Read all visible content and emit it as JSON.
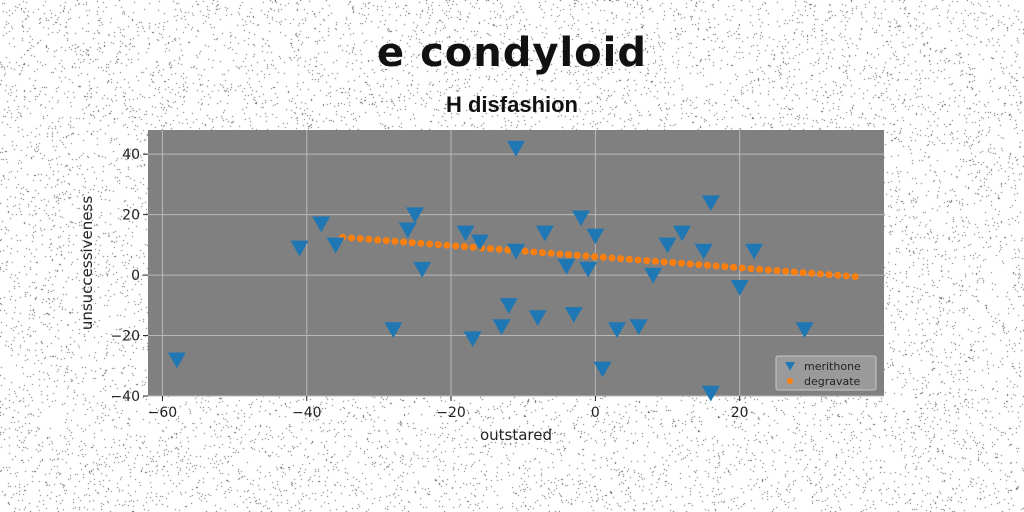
{
  "chart_data": {
    "type": "scatter",
    "title": "e condyloid",
    "subtitle": "H disfashion",
    "xlabel": "outstared",
    "ylabel": "unsuccessiveness",
    "xlim": [
      -62,
      40
    ],
    "ylim": [
      -40,
      48
    ],
    "xticks": [
      -60,
      -40,
      -20,
      0,
      20
    ],
    "yticks": [
      -40,
      -20,
      0,
      20,
      40
    ],
    "grid": true,
    "legend_position": "bottom-right",
    "background": "#808080",
    "series": [
      {
        "name": "merithone",
        "marker": "triangle-down",
        "color": "#1f77b4",
        "points": [
          [
            -58,
            -28
          ],
          [
            -41,
            9
          ],
          [
            -38,
            17
          ],
          [
            -36,
            10
          ],
          [
            -28,
            -18
          ],
          [
            -26,
            15
          ],
          [
            -25,
            20
          ],
          [
            -24,
            2
          ],
          [
            -18,
            14
          ],
          [
            -17,
            -21
          ],
          [
            -16,
            11
          ],
          [
            -13,
            -17
          ],
          [
            -12,
            -10
          ],
          [
            -11,
            8
          ],
          [
            -11,
            42
          ],
          [
            -8,
            -14
          ],
          [
            -7,
            14
          ],
          [
            -4,
            3
          ],
          [
            -3,
            -13
          ],
          [
            -2,
            19
          ],
          [
            -1,
            2
          ],
          [
            0,
            13
          ],
          [
            1,
            -31
          ],
          [
            3,
            -18
          ],
          [
            6,
            -17
          ],
          [
            8,
            0
          ],
          [
            10,
            10
          ],
          [
            12,
            14
          ],
          [
            15,
            8
          ],
          [
            16,
            24
          ],
          [
            16,
            -39
          ],
          [
            20,
            -4
          ],
          [
            22,
            8
          ],
          [
            29,
            -18
          ]
        ]
      },
      {
        "name": "degravate",
        "marker": "circle",
        "color": "#ff7f0e",
        "line": {
          "x_start": -35,
          "x_end": 36,
          "y_start": 12.5,
          "y_end": -0.5,
          "count": 60
        }
      }
    ]
  }
}
